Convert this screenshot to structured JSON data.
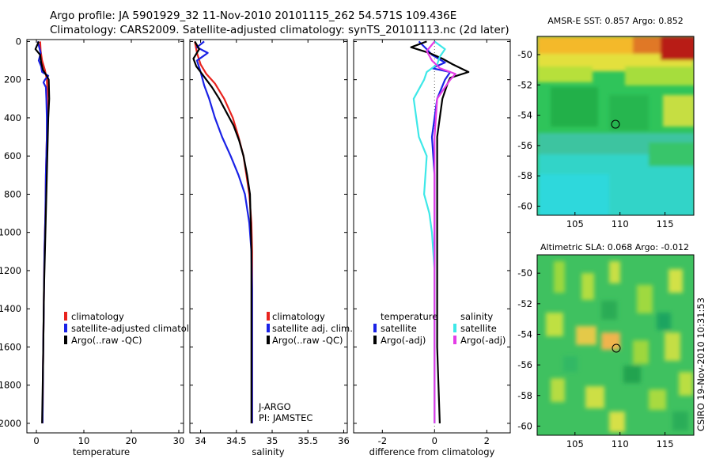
{
  "title": {
    "line1": "Argo profile: JA 5901929_32 11-Nov-2010 20101115_262 54.571S 109.436E",
    "line2": "Climatology: CARS2009. Satellite-adjusted climatology: synTS_20101113.nc (2d later)"
  },
  "stamp": "CSIRO 19-Nov-2010 10:31:53",
  "colors": {
    "red": "#e8231e",
    "blue": "#1a22e6",
    "black": "#000000",
    "cyan": "#3ee8e8",
    "magenta": "#e43ce6"
  },
  "depth_ticks": [
    "0",
    "200",
    "400",
    "600",
    "800",
    "1000",
    "1200",
    "1400",
    "1600",
    "1800",
    "2000"
  ],
  "chart_data": [
    {
      "type": "line",
      "id": "temperature",
      "xlabel": "temperature",
      "xlim": [
        -2,
        31
      ],
      "ylim": [
        2050,
        -10
      ],
      "xtick_values": [
        0,
        10,
        20,
        30
      ],
      "xticks": [
        "0",
        "10",
        "20",
        "30"
      ],
      "legend": [
        "climatology",
        "satellite-adjusted climatolog",
        "Argo(..raw -QC)"
      ],
      "series": [
        {
          "name": "climatology",
          "color": "red",
          "x": [
            0.8,
            0.9,
            1.2,
            1.8,
            2.2,
            2.3,
            2.3,
            2.3,
            2.2,
            2.0,
            1.9,
            1.7,
            1.6,
            1.5,
            1.4,
            1.3
          ],
          "y": [
            0,
            50,
            100,
            150,
            200,
            250,
            300,
            400,
            500,
            700,
            900,
            1100,
            1300,
            1500,
            1700,
            2000
          ]
        },
        {
          "name": "satellite-adjusted climatology",
          "color": "blue",
          "x": [
            0.3,
            0.6,
            0.9,
            0.5,
            1.0,
            1.2,
            2.5,
            1.8,
            1.5,
            2.0,
            2.1,
            2.2,
            2.2,
            2.1,
            2.0,
            1.9,
            1.7,
            1.6,
            1.5,
            1.4,
            1.3
          ],
          "y": [
            0,
            30,
            60,
            100,
            130,
            160,
            180,
            200,
            215,
            240,
            300,
            400,
            500,
            600,
            700,
            900,
            1100,
            1300,
            1500,
            1700,
            2000
          ]
        },
        {
          "name": "Argo(..raw -QC)",
          "color": "black",
          "x": [
            0.5,
            -0.2,
            0.8,
            1.0,
            1.4,
            2.2,
            2.6,
            2.7,
            2.5,
            2.3,
            2.2,
            2.0,
            1.8,
            1.6,
            1.5,
            1.4,
            1.2
          ],
          "y": [
            0,
            40,
            70,
            110,
            150,
            180,
            200,
            300,
            400,
            600,
            700,
            900,
            1100,
            1300,
            1500,
            1700,
            2000
          ]
        }
      ]
    },
    {
      "type": "line",
      "id": "salinity",
      "xlabel": "salinity",
      "xlim": [
        33.85,
        36.05
      ],
      "ylim": [
        2050,
        -10
      ],
      "xtick_values": [
        34,
        34.5,
        35,
        35.5,
        36
      ],
      "xticks": [
        "34",
        "34.5",
        "35",
        "35.5",
        "36"
      ],
      "legend": [
        "climatology",
        "satellite adj. clim.",
        "Argo(..raw -QC)"
      ],
      "annotations": [
        "J-ARGO",
        "PI: JAMSTEC"
      ],
      "series": [
        {
          "name": "climatology",
          "color": "red",
          "x": [
            33.92,
            33.95,
            34.0,
            34.08,
            34.2,
            34.33,
            34.45,
            34.53,
            34.6,
            34.64,
            34.68,
            34.71,
            34.72,
            34.72,
            34.72,
            34.72,
            34.72
          ],
          "y": [
            0,
            60,
            120,
            170,
            220,
            300,
            400,
            500,
            600,
            700,
            800,
            950,
            1100,
            1300,
            1500,
            1700,
            2000
          ]
        },
        {
          "name": "satellite adj. clim.",
          "color": "blue",
          "x": [
            34.05,
            33.95,
            34.1,
            33.95,
            34.0,
            34.05,
            34.12,
            34.2,
            34.3,
            34.42,
            34.53,
            34.62,
            34.68,
            34.71,
            34.72,
            34.72,
            34.72,
            34.72
          ],
          "y": [
            0,
            30,
            60,
            100,
            160,
            230,
            300,
            400,
            500,
            600,
            700,
            800,
            950,
            1100,
            1300,
            1500,
            1700,
            2000
          ]
        },
        {
          "name": "Argo(..raw -QC)",
          "color": "black",
          "x": [
            33.92,
            33.98,
            33.9,
            33.94,
            34.0,
            34.08,
            34.16,
            34.26,
            34.36,
            34.46,
            34.54,
            34.6,
            34.65,
            34.69,
            34.7,
            34.71,
            34.71,
            34.71
          ],
          "y": [
            0,
            40,
            90,
            130,
            160,
            200,
            240,
            300,
            370,
            440,
            520,
            600,
            700,
            800,
            950,
            1100,
            1500,
            2000
          ]
        }
      ]
    },
    {
      "type": "line",
      "id": "difference",
      "xlabel": "difference from climatology",
      "xlim": [
        -3.1,
        2.9
      ],
      "ylim": [
        2050,
        -10
      ],
      "xtick_values": [
        -2,
        0,
        2
      ],
      "xticks": [
        "-2",
        "0",
        "2"
      ],
      "legend": [
        "temperature",
        "satellite",
        "Argo(-adj)",
        "salinity",
        "satellite",
        "Argo(-adj)"
      ],
      "series": [
        {
          "name": "temperature satellite",
          "color": "blue",
          "x": [
            -0.6,
            -0.3,
            -0.1,
            0.4,
            -0.1,
            0.6,
            0.4,
            0.1,
            0.0,
            -0.1,
            0.0,
            0.0,
            0.0,
            0.0,
            0.0,
            0.0
          ],
          "y": [
            0,
            40,
            70,
            110,
            140,
            160,
            200,
            300,
            400,
            500,
            700,
            900,
            1100,
            1300,
            1600,
            2000
          ]
        },
        {
          "name": "temperature Argo(-adj)",
          "color": "black",
          "x": [
            -0.3,
            -0.9,
            -0.2,
            0.3,
            0.7,
            1.3,
            0.6,
            0.5,
            0.3,
            0.2,
            0.1,
            0.1,
            0.1,
            0.1,
            0.1,
            0.1,
            0.2
          ],
          "y": [
            0,
            30,
            60,
            90,
            120,
            160,
            190,
            220,
            300,
            400,
            500,
            700,
            900,
            1100,
            1300,
            1600,
            2000
          ]
        },
        {
          "name": "salinity satellite",
          "color": "cyan",
          "x": [
            0.0,
            0.4,
            0.2,
            0.1,
            -0.3,
            -0.4,
            -0.8,
            -0.6,
            -0.3,
            -0.4,
            -0.2,
            -0.1,
            0.0,
            0.0,
            0.0,
            0.0
          ],
          "y": [
            0,
            40,
            80,
            120,
            160,
            200,
            300,
            500,
            600,
            800,
            900,
            1000,
            1200,
            1400,
            1600,
            2000
          ]
        },
        {
          "name": "salinity Argo(-adj)",
          "color": "magenta",
          "x": [
            0.0,
            -0.3,
            -0.1,
            0.2,
            0.8,
            0.6,
            0.1,
            0.0,
            0.0,
            0.0,
            0.0,
            0.0
          ],
          "y": [
            0,
            50,
            100,
            140,
            170,
            200,
            300,
            500,
            800,
            1200,
            1600,
            2000
          ]
        }
      ]
    }
  ],
  "maps": [
    {
      "title": "AMSR-E SST: 0.857 Argo: 0.852",
      "xticks": [
        "105",
        "110",
        "115"
      ],
      "yticks": [
        "-50",
        "-52",
        "-54",
        "-56",
        "-58",
        "-60"
      ],
      "marker": {
        "lon": 109.436,
        "lat": -54.571
      }
    },
    {
      "title": "Altimetric SLA: 0.068 Argo: -0.012",
      "xticks": [
        "105",
        "110",
        "115"
      ],
      "yticks": [
        "-50",
        "-52",
        "-54",
        "-56",
        "-58",
        "-60"
      ],
      "marker": {
        "lon": 109.436,
        "lat": -54.571
      }
    }
  ]
}
